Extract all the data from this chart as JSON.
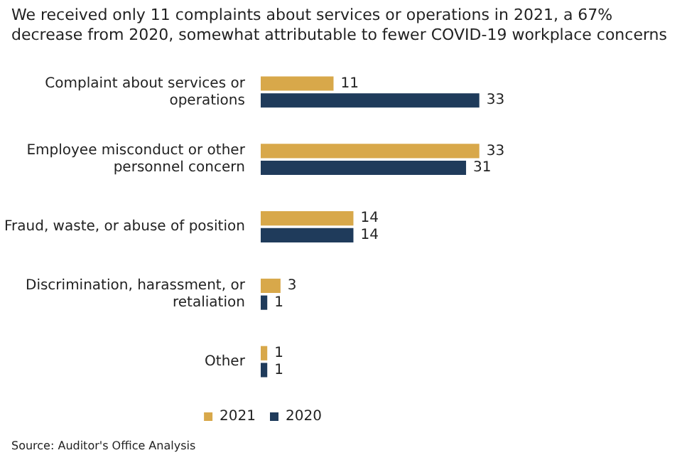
{
  "chart_data": {
    "type": "bar",
    "orientation": "horizontal",
    "title": "We received only 11 complaints about services or operations in 2021, a 67% decrease from 2020, somewhat attributable to fewer COVID-19 workplace concerns",
    "categories": [
      "Complaint about services or operations",
      "Employee misconduct or other personnel concern",
      "Fraud, waste, or abuse of position",
      "Discrimination, harassment, or retaliation",
      "Other"
    ],
    "series": [
      {
        "name": "2021",
        "color": "#d8a84a",
        "values": [
          11,
          33,
          14,
          3,
          1
        ]
      },
      {
        "name": "2020",
        "color": "#1f3b5b",
        "values": [
          33,
          31,
          14,
          1,
          1
        ]
      }
    ],
    "tick_labels": "y",
    "data_labels": true,
    "legend": "bottom",
    "annotations": [
      "Source: Auditor's Office Analysis"
    ]
  }
}
